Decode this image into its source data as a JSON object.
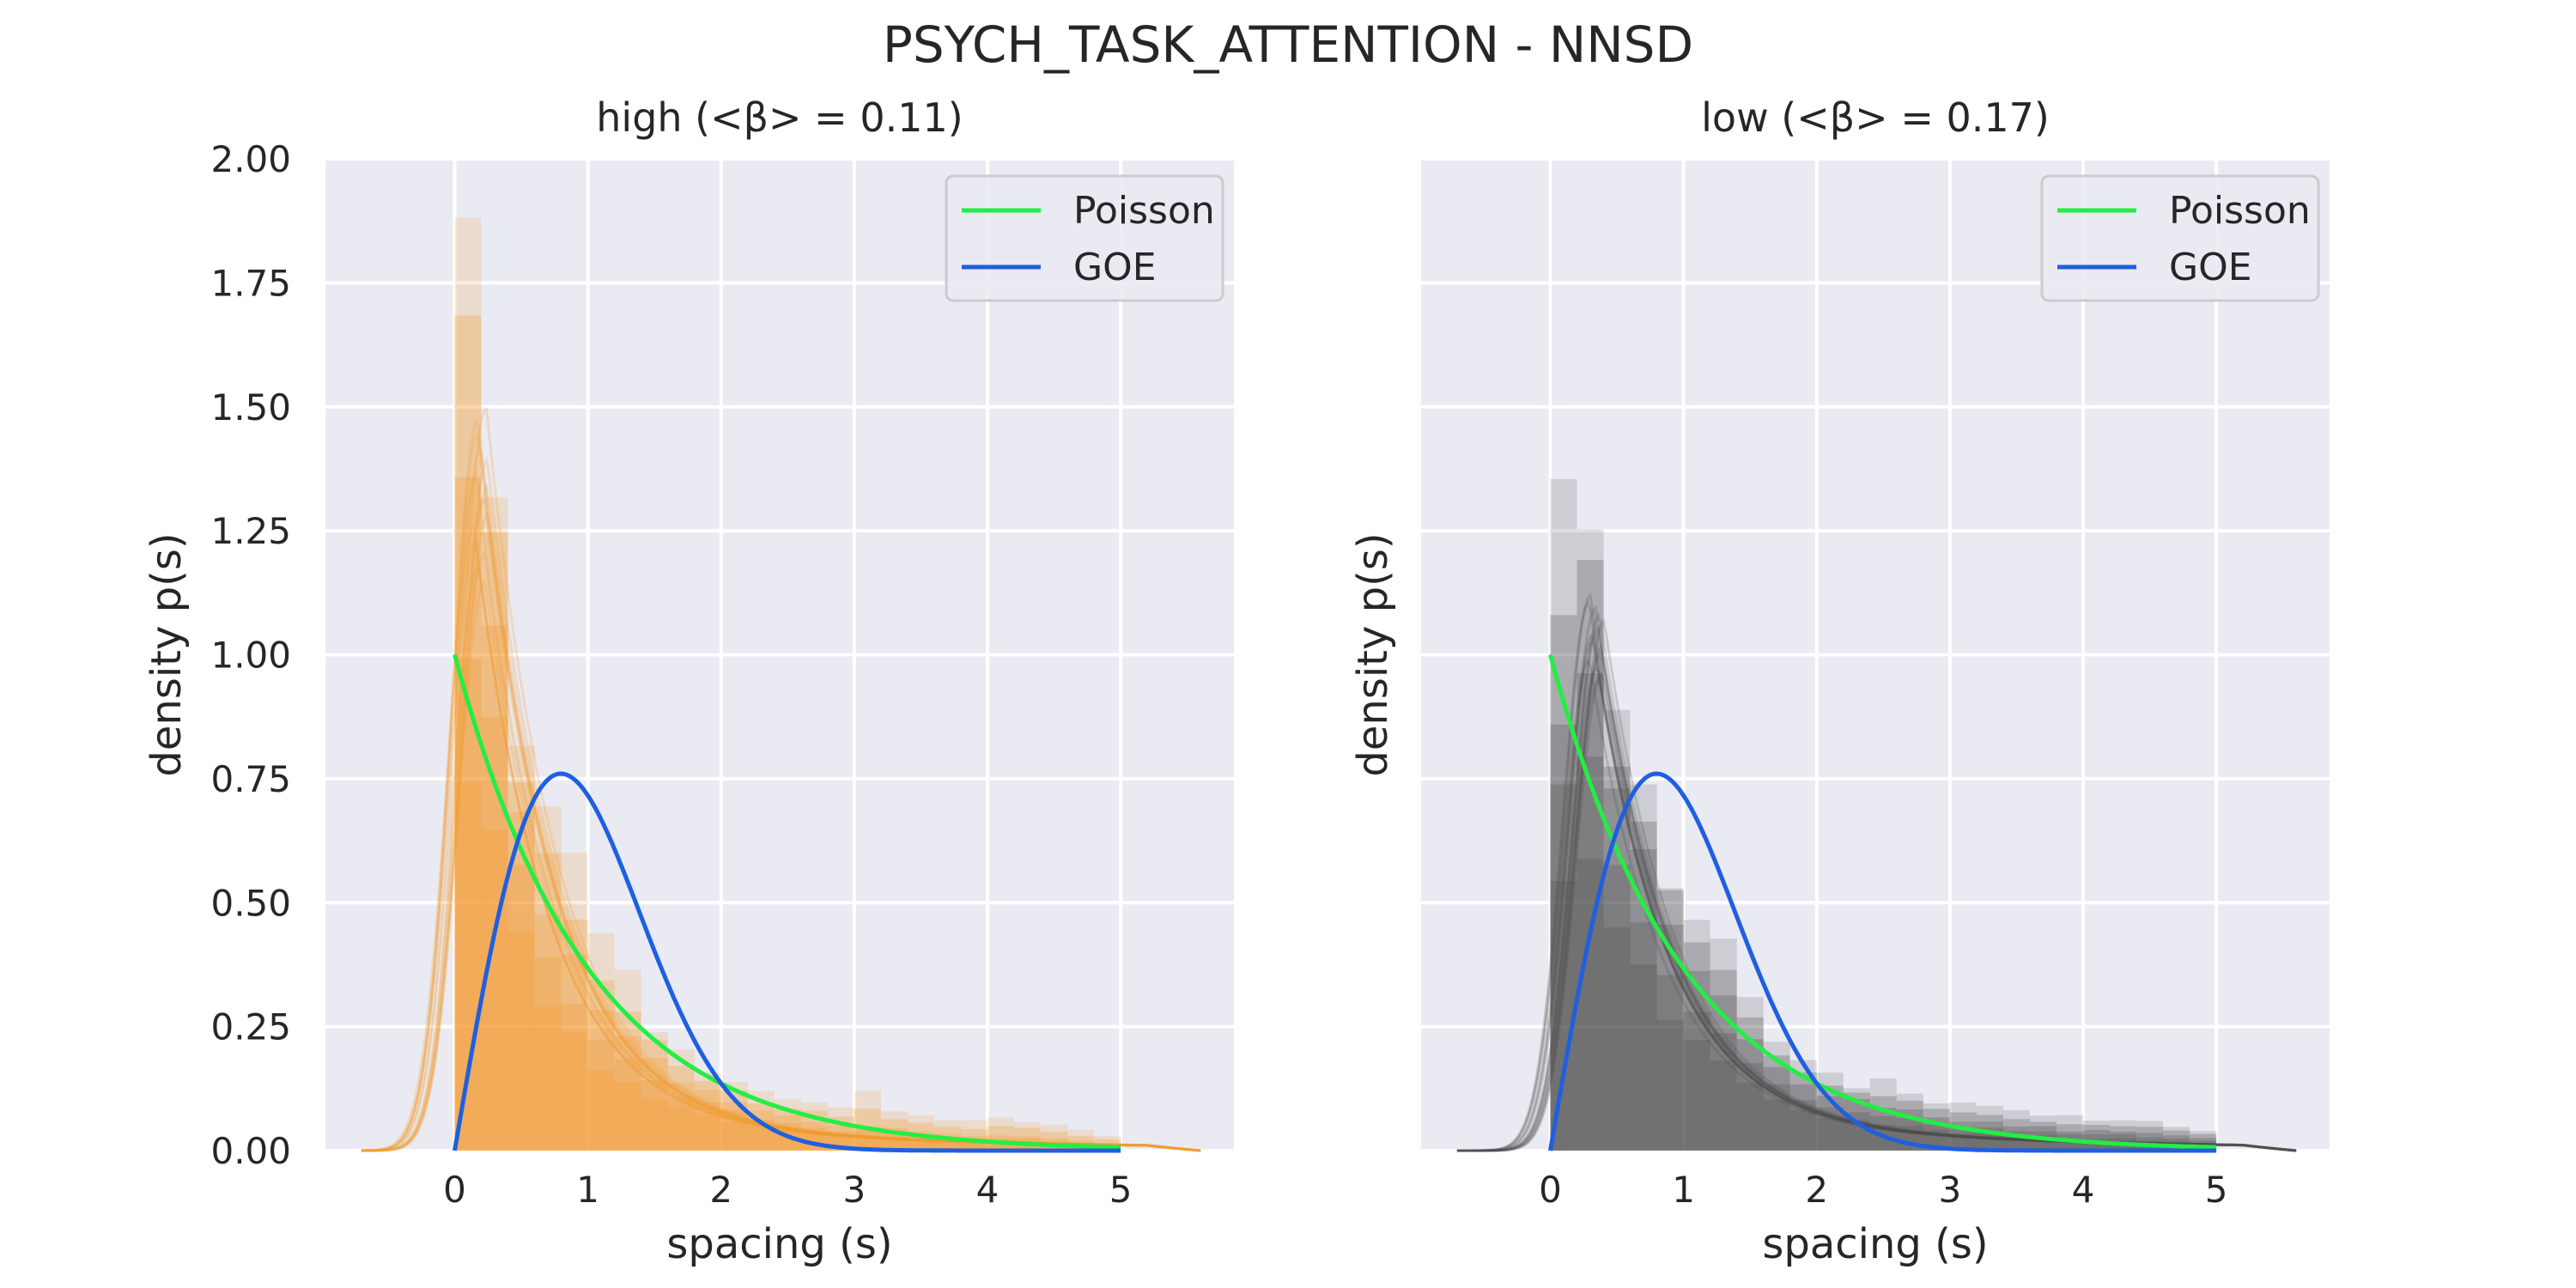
{
  "figure": {
    "title": "PSYCH_TASK_ATTENTION - NNSD"
  },
  "colors": {
    "panel_background": "#EAEAF2",
    "grid": "#FFFFFF",
    "poisson": "#22EE44",
    "goe": "#1F5FE0",
    "high_hist": "#F39A2F",
    "low_hist": "#4F4F4F"
  },
  "chart_data": [
    {
      "type": "area",
      "title": "high (<β> = 0.11)",
      "xlabel": "spacing (s)",
      "ylabel": "density p(s)",
      "xlim": [
        -0.97,
        5.85
      ],
      "ylim": [
        0,
        2.0
      ],
      "xticks": [
        "0",
        "1",
        "2",
        "3",
        "4",
        "5"
      ],
      "yticks": [
        "0.00",
        "0.25",
        "0.50",
        "0.75",
        "1.00",
        "1.25",
        "1.50",
        "1.75",
        "2.00"
      ],
      "grid": true,
      "legend": {
        "position": "top-right",
        "entries": [
          "Poisson",
          "GOE"
        ]
      },
      "hist_color": "#F39A2F",
      "series": [
        {
          "name": "Poisson",
          "kind": "line",
          "function": "exp(-s)",
          "x_range": [
            0,
            5
          ],
          "color": "#22EE44"
        },
        {
          "name": "GOE",
          "kind": "line",
          "function": "(pi/2) s exp(-pi s^2 / 4)",
          "x_range": [
            0,
            5
          ],
          "color": "#1F5FE0"
        }
      ],
      "histogram_bins": {
        "bin_width": 0.2,
        "centers": [
          0.1,
          0.3,
          0.5,
          0.7,
          0.9,
          1.1,
          1.3,
          1.5,
          1.7,
          1.9,
          2.1,
          2.3,
          2.5,
          2.7,
          2.9,
          3.1,
          3.3,
          3.5,
          3.7,
          3.9,
          4.1,
          4.3,
          4.5,
          4.7,
          4.9
        ],
        "max_values": [
          1.96,
          1.38,
          0.83,
          0.72,
          0.58,
          0.42,
          0.35,
          0.25,
          0.2,
          0.16,
          0.14,
          0.12,
          0.1,
          0.1,
          0.09,
          0.12,
          0.08,
          0.07,
          0.06,
          0.06,
          0.07,
          0.06,
          0.05,
          0.04,
          0.03
        ],
        "typical_values": [
          1.3,
          1.05,
          0.7,
          0.5,
          0.38,
          0.28,
          0.22,
          0.18,
          0.14,
          0.12,
          0.1,
          0.08,
          0.07,
          0.06,
          0.05,
          0.05,
          0.045,
          0.04,
          0.035,
          0.03,
          0.03,
          0.03,
          0.025,
          0.02,
          0.015
        ]
      },
      "kde": {
        "peak_x": 0.2,
        "peak_range": [
          1.15,
          1.5
        ]
      }
    },
    {
      "type": "area",
      "title": "low (<β> = 0.17)",
      "xlabel": "spacing (s)",
      "ylabel": "density p(s)",
      "xlim": [
        -0.97,
        5.85
      ],
      "ylim": [
        0,
        2.0
      ],
      "xticks": [
        "0",
        "1",
        "2",
        "3",
        "4",
        "5"
      ],
      "yticks": [],
      "grid": true,
      "legend": {
        "position": "top-right",
        "entries": [
          "Poisson",
          "GOE"
        ]
      },
      "hist_color": "#4F4F4F",
      "series": [
        {
          "name": "Poisson",
          "kind": "line",
          "function": "exp(-s)",
          "x_range": [
            0,
            5
          ],
          "color": "#22EE44"
        },
        {
          "name": "GOE",
          "kind": "line",
          "function": "(pi/2) s exp(-pi s^2 / 4)",
          "x_range": [
            0,
            5
          ],
          "color": "#1F5FE0"
        }
      ],
      "histogram_bins": {
        "bin_width": 0.2,
        "centers": [
          0.1,
          0.3,
          0.5,
          0.7,
          0.9,
          1.1,
          1.3,
          1.5,
          1.7,
          1.9,
          2.1,
          2.3,
          2.5,
          2.7,
          2.9,
          3.1,
          3.3,
          3.5,
          3.7,
          3.9,
          4.1,
          4.3,
          4.5,
          4.7,
          4.9
        ],
        "max_values": [
          1.35,
          1.3,
          0.85,
          0.75,
          0.55,
          0.48,
          0.42,
          0.3,
          0.22,
          0.18,
          0.16,
          0.13,
          0.14,
          0.12,
          0.1,
          0.1,
          0.09,
          0.08,
          0.07,
          0.07,
          0.06,
          0.06,
          0.06,
          0.05,
          0.04
        ],
        "typical_values": [
          0.9,
          1.0,
          0.75,
          0.6,
          0.45,
          0.36,
          0.3,
          0.22,
          0.17,
          0.13,
          0.11,
          0.1,
          0.09,
          0.08,
          0.07,
          0.06,
          0.06,
          0.05,
          0.05,
          0.04,
          0.04,
          0.04,
          0.035,
          0.03,
          0.025
        ]
      },
      "kde": {
        "peak_x": 0.35,
        "peak_range": [
          0.95,
          1.12
        ]
      }
    }
  ]
}
